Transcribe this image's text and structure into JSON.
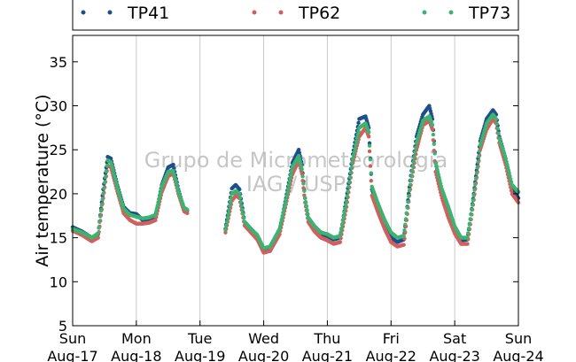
{
  "chart_data": {
    "type": "scatter",
    "ylabel": "Air temperature (°C)",
    "xlabel": "",
    "ylim": [
      5,
      38
    ],
    "yticks": [
      5,
      10,
      15,
      20,
      25,
      30,
      35
    ],
    "xlim_days": [
      0,
      7
    ],
    "xticks": [
      {
        "day": 0,
        "line1": "Sun",
        "line2": "Aug-17"
      },
      {
        "day": 1,
        "line1": "Mon",
        "line2": "Aug-18"
      },
      {
        "day": 2,
        "line1": "Tue",
        "line2": "Aug-19"
      },
      {
        "day": 3,
        "line1": "Wed",
        "line2": "Aug-20"
      },
      {
        "day": 4,
        "line1": "Thu",
        "line2": "Aug-21"
      },
      {
        "day": 5,
        "line1": "Fri",
        "line2": "Aug-22"
      },
      {
        "day": 6,
        "line1": "Sat",
        "line2": "Aug-23"
      },
      {
        "day": 7,
        "line1": "Sun",
        "line2": "Aug-24"
      }
    ],
    "grid": "vertical",
    "legend_position": "top",
    "watermark": [
      "Grupo de Micrometeorologia",
      "IAG / USP"
    ],
    "gap_days": [
      1.8,
      2.4
    ],
    "series": [
      {
        "name": "TP41",
        "color": "#1f4e8c",
        "x": [
          0,
          0.15,
          0.3,
          0.4,
          0.48,
          0.55,
          0.6,
          0.7,
          0.8,
          0.9,
          1.0,
          1.1,
          1.2,
          1.3,
          1.4,
          1.5,
          1.58,
          1.66,
          1.75,
          1.8,
          2.4,
          2.5,
          2.56,
          2.62,
          2.7,
          2.8,
          2.9,
          3.0,
          3.1,
          3.25,
          3.35,
          3.45,
          3.55,
          3.6,
          3.65,
          3.7,
          3.8,
          3.9,
          4.0,
          4.1,
          4.2,
          4.3,
          4.4,
          4.5,
          4.6,
          4.65,
          4.7,
          4.8,
          4.9,
          5.0,
          5.1,
          5.2,
          5.3,
          5.4,
          5.5,
          5.6,
          5.65,
          5.7,
          5.8,
          5.9,
          6.0,
          6.1,
          6.2,
          6.3,
          6.4,
          6.5,
          6.6,
          6.65,
          6.7,
          6.8,
          6.9,
          7.0
        ],
        "y": [
          16.2,
          15.7,
          15.0,
          15.4,
          20.5,
          24.2,
          24.0,
          21.0,
          18.5,
          17.8,
          17.7,
          17.0,
          16.9,
          17.4,
          21.0,
          23.0,
          23.3,
          20.5,
          18.2,
          18.1,
          16.0,
          20.6,
          21.0,
          20.5,
          16.8,
          16.0,
          15.2,
          13.5,
          13.5,
          15.8,
          19.5,
          23.5,
          25.0,
          23.3,
          19.5,
          17.2,
          16.2,
          15.4,
          15.2,
          14.8,
          15.0,
          19.5,
          24.5,
          28.5,
          28.8,
          27.5,
          20.5,
          18.5,
          16.8,
          15.0,
          14.5,
          14.8,
          21.5,
          26.5,
          29.0,
          30.0,
          28.5,
          23.5,
          20.0,
          18.0,
          16.0,
          14.7,
          14.8,
          20.0,
          26.0,
          28.5,
          29.5,
          29.0,
          26.5,
          24.0,
          20.5,
          19.5
        ]
      },
      {
        "name": "TP62",
        "color": "#d0605e",
        "x": [
          0,
          0.15,
          0.3,
          0.4,
          0.48,
          0.55,
          0.6,
          0.7,
          0.8,
          0.9,
          1.0,
          1.1,
          1.2,
          1.3,
          1.4,
          1.5,
          1.58,
          1.66,
          1.75,
          1.8,
          2.4,
          2.5,
          2.56,
          2.62,
          2.7,
          2.8,
          2.9,
          3.0,
          3.1,
          3.25,
          3.35,
          3.45,
          3.55,
          3.6,
          3.65,
          3.7,
          3.8,
          3.9,
          4.0,
          4.1,
          4.2,
          4.3,
          4.4,
          4.5,
          4.6,
          4.65,
          4.7,
          4.8,
          4.9,
          5.0,
          5.1,
          5.2,
          5.3,
          5.4,
          5.5,
          5.6,
          5.65,
          5.7,
          5.8,
          5.9,
          6.0,
          6.1,
          6.2,
          6.3,
          6.4,
          6.5,
          6.6,
          6.65,
          6.7,
          6.8,
          6.9,
          7.0
        ],
        "y": [
          15.8,
          15.3,
          14.6,
          15.0,
          19.5,
          23.2,
          23.0,
          20.3,
          17.8,
          17.0,
          16.6,
          16.6,
          16.7,
          17.0,
          20.2,
          22.0,
          22.3,
          20.0,
          18.0,
          17.8,
          15.6,
          19.2,
          19.8,
          19.5,
          16.4,
          15.6,
          14.8,
          13.3,
          13.5,
          15.4,
          18.8,
          22.2,
          23.8,
          22.3,
          19.0,
          16.8,
          15.7,
          15.0,
          14.7,
          14.3,
          14.5,
          18.5,
          23.5,
          26.5,
          27.5,
          26.5,
          19.8,
          17.8,
          16.0,
          14.5,
          14.0,
          14.2,
          20.5,
          25.0,
          27.8,
          28.3,
          27.3,
          22.5,
          19.5,
          17.3,
          15.5,
          14.3,
          14.3,
          19.3,
          25.0,
          27.3,
          28.5,
          28.0,
          25.8,
          23.3,
          20.0,
          19.0
        ]
      },
      {
        "name": "TP73",
        "color": "#3cb371",
        "x": [
          0,
          0.15,
          0.3,
          0.4,
          0.48,
          0.55,
          0.6,
          0.7,
          0.8,
          0.9,
          1.0,
          1.1,
          1.2,
          1.3,
          1.4,
          1.5,
          1.58,
          1.66,
          1.75,
          1.8,
          2.4,
          2.5,
          2.56,
          2.62,
          2.7,
          2.8,
          2.9,
          3.0,
          3.1,
          3.25,
          3.35,
          3.45,
          3.55,
          3.6,
          3.65,
          3.7,
          3.8,
          3.9,
          4.0,
          4.1,
          4.2,
          4.3,
          4.4,
          4.5,
          4.6,
          4.65,
          4.7,
          4.8,
          4.9,
          5.0,
          5.1,
          5.2,
          5.3,
          5.4,
          5.5,
          5.6,
          5.65,
          5.7,
          5.8,
          5.9,
          6.0,
          6.1,
          6.2,
          6.3,
          6.4,
          6.5,
          6.6,
          6.65,
          6.7,
          6.8,
          6.9,
          7.0
        ],
        "y": [
          16.0,
          15.6,
          15.0,
          15.5,
          20.0,
          23.8,
          23.6,
          20.8,
          18.3,
          17.6,
          17.4,
          17.2,
          17.3,
          17.6,
          20.8,
          22.5,
          22.6,
          20.3,
          18.4,
          18.2,
          15.9,
          20.0,
          20.3,
          20.0,
          16.8,
          16.0,
          15.3,
          13.8,
          14.0,
          16.0,
          19.3,
          23.0,
          24.3,
          22.8,
          19.5,
          17.3,
          16.3,
          15.6,
          15.4,
          15.0,
          15.2,
          19.2,
          24.0,
          27.5,
          28.0,
          27.0,
          20.8,
          18.8,
          17.0,
          15.6,
          15.0,
          15.2,
          21.0,
          25.8,
          28.3,
          28.8,
          27.8,
          23.5,
          20.5,
          18.5,
          16.3,
          15.0,
          15.0,
          19.8,
          25.5,
          28.0,
          29.0,
          28.5,
          26.3,
          24.0,
          21.0,
          20.2
        ]
      }
    ]
  }
}
